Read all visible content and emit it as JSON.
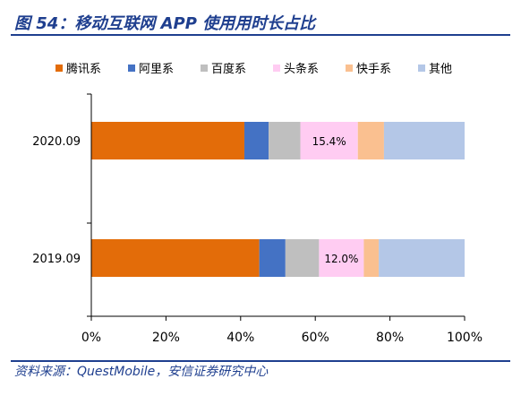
{
  "header": {
    "title": "图 54：移动互联网 APP 使用用时长占比"
  },
  "footer": {
    "source": "资料来源：QuestMobile，安信证券研究中心"
  },
  "chart_data": {
    "type": "bar",
    "orientation": "horizontal",
    "stacked": true,
    "categories": [
      "2020.09",
      "2019.09"
    ],
    "series": [
      {
        "name": "腾讯系",
        "color": "#e36c09",
        "values": [
          41.0,
          45.0
        ]
      },
      {
        "name": "阿里系",
        "color": "#4472c4",
        "values": [
          6.5,
          7.0
        ]
      },
      {
        "name": "百度系",
        "color": "#bfbfbf",
        "values": [
          8.5,
          9.0
        ]
      },
      {
        "name": "头条系",
        "color": "#ffccf2",
        "values": [
          15.4,
          12.0
        ]
      },
      {
        "name": "快手系",
        "color": "#fac090",
        "values": [
          7.0,
          4.0
        ]
      },
      {
        "name": "其他",
        "color": "#b4c7e7",
        "values": [
          21.6,
          23.0
        ]
      }
    ],
    "data_labels": [
      {
        "category": "2020.09",
        "series": "头条系",
        "text": "15.4%"
      },
      {
        "category": "2019.09",
        "series": "头条系",
        "text": "12.0%"
      }
    ],
    "x_ticks": [
      "0%",
      "20%",
      "40%",
      "60%",
      "80%",
      "100%"
    ],
    "xlim": [
      0,
      100
    ],
    "legend": "top",
    "grid": false
  }
}
